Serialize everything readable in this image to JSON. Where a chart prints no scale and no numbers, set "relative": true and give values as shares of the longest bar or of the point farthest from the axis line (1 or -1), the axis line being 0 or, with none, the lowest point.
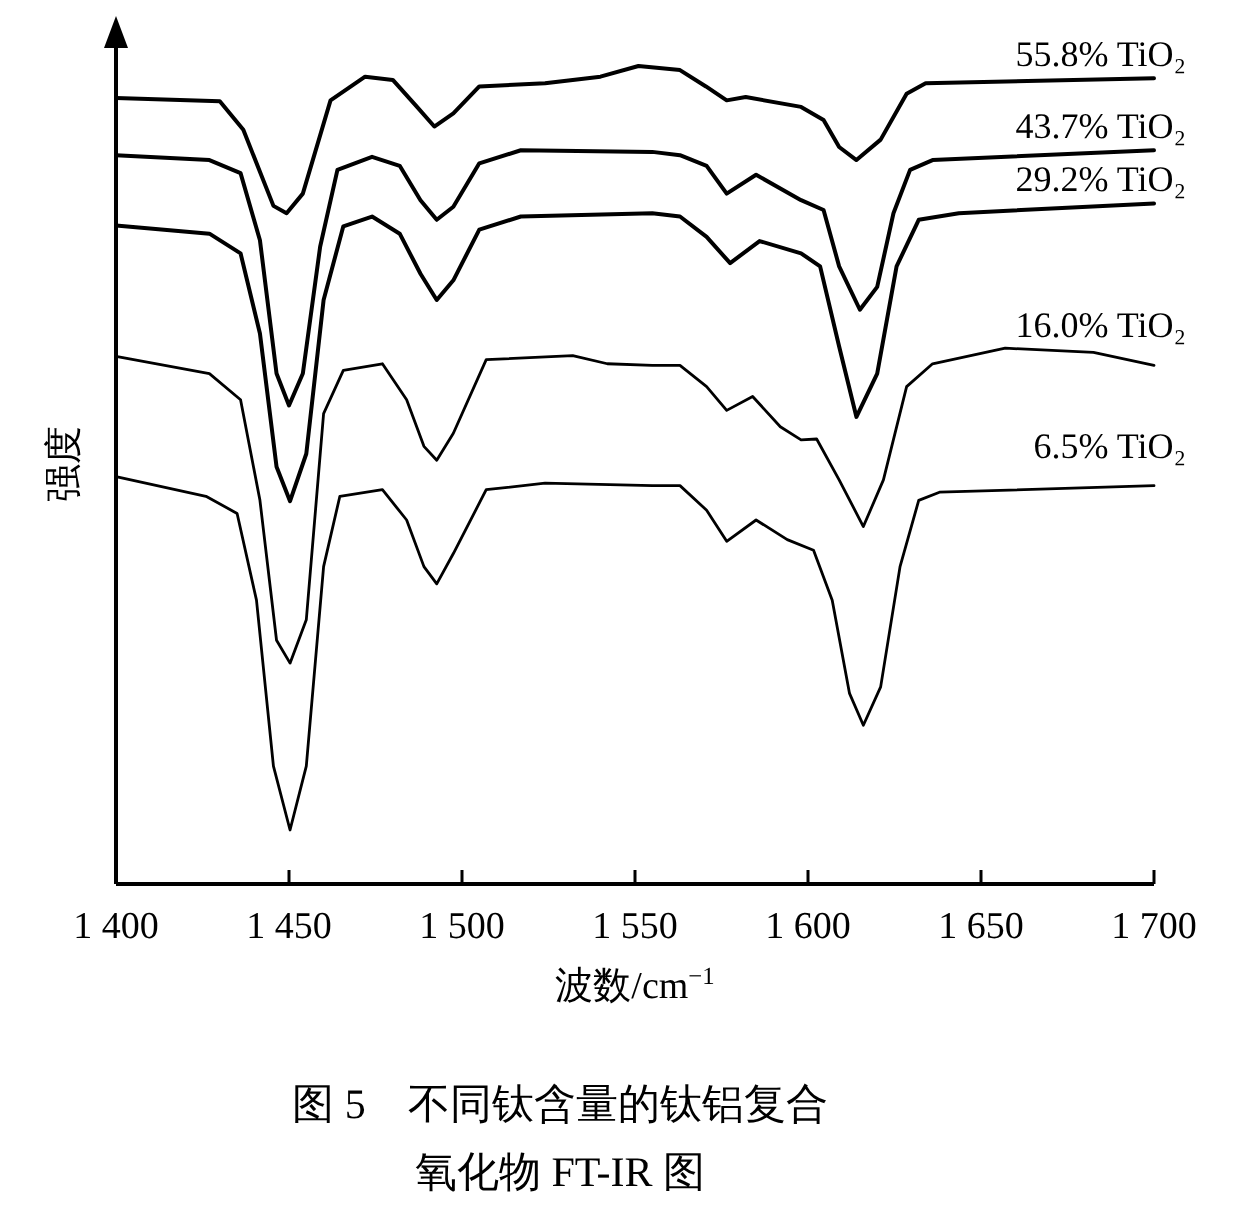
{
  "chart_data": {
    "type": "line",
    "relative": true,
    "title": "图 5　不同钛含量的钛铝复合",
    "subtitle": "氧化物 FT-IR 图",
    "xlabel": "波数/cm$^{−1}$",
    "ylabel": "强度",
    "legend": false,
    "marker": "none",
    "line_style": "solid",
    "grid": false,
    "xlim": [
      1400,
      1700
    ],
    "xticks": [
      {
        "value": 1400,
        "label": "1 400"
      },
      {
        "value": 1450,
        "label": "1 450"
      },
      {
        "value": 1500,
        "label": "1 500"
      },
      {
        "value": 1550,
        "label": "1 550"
      },
      {
        "value": 1600,
        "label": "1 600"
      },
      {
        "value": 1650,
        "label": "1 650"
      },
      {
        "value": 1700,
        "label": "1 700"
      }
    ],
    "series": [
      {
        "name": "55.8% TiO₂",
        "color": "#000000",
        "x": [
          1400,
          1430,
          1436.8,
          1445.5,
          1449.3,
          1454,
          1462,
          1472,
          1480,
          1487,
          1492,
          1497.5,
          1505,
          1524,
          1540,
          1551,
          1563,
          1570.5,
          1576.5,
          1582,
          1598,
          1604.5,
          1609,
          1614,
          1621,
          1628.5,
          1634,
          1700
        ],
        "values": [
          0.961,
          0.957,
          0.922,
          0.829,
          0.82,
          0.844,
          0.958,
          0.987,
          0.983,
          0.95,
          0.926,
          0.942,
          0.975,
          0.979,
          0.987,
          1.0,
          0.995,
          0.975,
          0.958,
          0.962,
          0.95,
          0.934,
          0.901,
          0.885,
          0.91,
          0.966,
          0.979,
          0.985
        ]
      },
      {
        "name": "43.7% TiO₂",
        "color": "#000000",
        "x": [
          1400,
          1427,
          1436,
          1441.6,
          1446.4,
          1450,
          1454,
          1459,
          1464,
          1474,
          1482,
          1488,
          1492.7,
          1497.5,
          1505,
          1517,
          1555,
          1563,
          1570.7,
          1576.5,
          1585,
          1598,
          1604.5,
          1609,
          1615,
          1620,
          1624.7,
          1629.5,
          1636,
          1700
        ],
        "values": [
          0.891,
          0.885,
          0.869,
          0.787,
          0.624,
          0.585,
          0.624,
          0.779,
          0.873,
          0.889,
          0.878,
          0.836,
          0.812,
          0.828,
          0.881,
          0.897,
          0.895,
          0.891,
          0.878,
          0.844,
          0.867,
          0.836,
          0.824,
          0.755,
          0.702,
          0.73,
          0.82,
          0.873,
          0.885,
          0.897
        ]
      },
      {
        "name": "29.2% TiO₂",
        "color": "#000000",
        "x": [
          1400,
          1427,
          1436,
          1441.6,
          1446.4,
          1450.3,
          1455,
          1460,
          1465.7,
          1474,
          1482,
          1488,
          1492.7,
          1497.5,
          1505,
          1517,
          1555,
          1563,
          1570.7,
          1577.5,
          1586,
          1598,
          1603.5,
          1609,
          1614,
          1620,
          1625.6,
          1632,
          1643.6,
          1700
        ],
        "values": [
          0.805,
          0.795,
          0.771,
          0.673,
          0.51,
          0.468,
          0.526,
          0.714,
          0.804,
          0.816,
          0.795,
          0.746,
          0.714,
          0.738,
          0.8,
          0.816,
          0.82,
          0.816,
          0.791,
          0.759,
          0.786,
          0.771,
          0.755,
          0.657,
          0.571,
          0.624,
          0.755,
          0.812,
          0.82,
          0.832
        ]
      },
      {
        "name": "16.0% TiO₂",
        "color": "#000000",
        "x": [
          1400,
          1427,
          1436,
          1441.6,
          1446.4,
          1450.3,
          1455,
          1460,
          1465.7,
          1477,
          1484,
          1489,
          1492.7,
          1497.5,
          1507,
          1532,
          1542,
          1555,
          1563,
          1570.7,
          1576.5,
          1584,
          1592,
          1598,
          1602.5,
          1609,
          1616,
          1621.8,
          1628.5,
          1636,
          1657,
          1682.5,
          1700
        ],
        "values": [
          0.645,
          0.624,
          0.592,
          0.469,
          0.298,
          0.27,
          0.323,
          0.575,
          0.628,
          0.636,
          0.592,
          0.535,
          0.518,
          0.551,
          0.641,
          0.646,
          0.636,
          0.634,
          0.634,
          0.608,
          0.579,
          0.596,
          0.559,
          0.543,
          0.544,
          0.494,
          0.437,
          0.494,
          0.608,
          0.636,
          0.655,
          0.65,
          0.634
        ]
      },
      {
        "name": "6.5% TiO₂",
        "color": "#000000",
        "x": [
          1400,
          1426,
          1435,
          1440.6,
          1445.5,
          1450.3,
          1455,
          1460,
          1464.7,
          1477,
          1484,
          1489,
          1492.7,
          1497.5,
          1507,
          1524,
          1555,
          1563,
          1570.7,
          1576.5,
          1585,
          1594,
          1601.6,
          1607,
          1612,
          1616,
          1621,
          1626.6,
          1632,
          1638,
          1700
        ],
        "values": [
          0.498,
          0.474,
          0.453,
          0.347,
          0.144,
          0.066,
          0.144,
          0.388,
          0.474,
          0.482,
          0.445,
          0.388,
          0.367,
          0.404,
          0.482,
          0.49,
          0.487,
          0.487,
          0.457,
          0.419,
          0.445,
          0.421,
          0.408,
          0.347,
          0.233,
          0.194,
          0.241,
          0.388,
          0.469,
          0.479,
          0.487
        ]
      }
    ]
  }
}
